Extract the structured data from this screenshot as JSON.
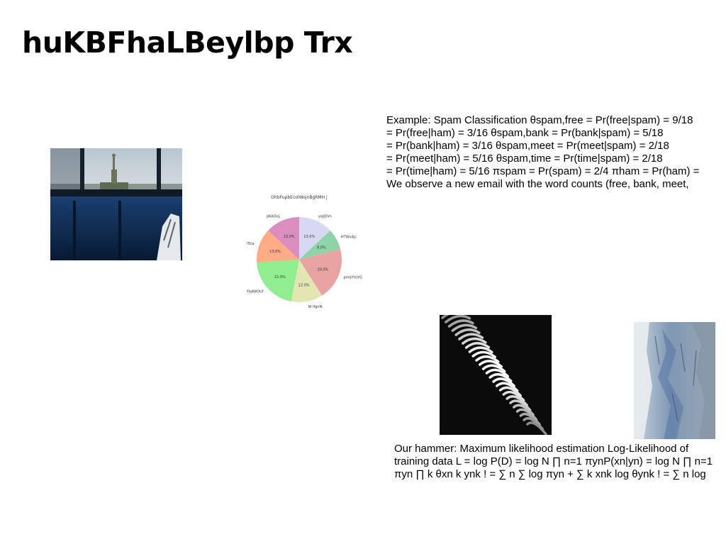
{
  "page": {
    "title": "huKBFhaLBeylbp Trx"
  },
  "spam_example": {
    "lines": [
      "Example: Spam Classification θspam,free = Pr(free|spam) = 9/18",
      "= Pr(free|ham) = 3/16 θspam,bank = Pr(bank|spam) = 5/18",
      "= Pr(bank|ham) = 3/16 θspam,meet = Pr(meet|spam) = 2/18",
      "= Pr(meet|ham) = 5/16 θspam,time = Pr(time|spam) = 2/18",
      "= Pr(time|ham) = 5/16 πspam = Pr(spam) = 2/4 πham = Pr(ham) =",
      "We observe a new email with the word counts (free, bank, meet,"
    ]
  },
  "hammer": {
    "lines": [
      "Our hammer: Maximum likelihood estimation Log-Likelihood of",
      "training data L = log P(D) = log N ∏ n=1 πynP(xn|yn) = log N ∏ n=1",
      "πyn ∏ k θxn k ynk ! = ∑ n ∑ log πyn + ∑ k xnk log θynk ! = ∑ n log"
    ]
  },
  "images": {
    "window": "statue-of-liberty-through-ferry-window",
    "ribbons": "abstract-black-white-wave",
    "cliff": "blue-grey-rock-cliff"
  },
  "chart_data": {
    "type": "pie",
    "title": "OhbFupbEcolWojnBgRMH j",
    "categories": [
      "yqiJDVn",
      "HTWvAjc",
      "pmbYVzrG",
      "W lfgnN",
      "FbAWOUf",
      "!Tcla",
      "pKAOoL"
    ],
    "values": [
      13.0,
      8.0,
      20.0,
      12.0,
      21.0,
      13.0,
      13.0
    ],
    "value_labels": [
      "13.0%",
      "8.0%",
      "20.0%",
      "12.0%",
      "21.0%",
      "13.0%",
      "13.0%"
    ],
    "colors": [
      "#d7d9f3",
      "#8fd3a8",
      "#e8a3a3",
      "#e3e6b2",
      "#90ee90",
      "#ffab85",
      "#d98ebd"
    ],
    "start": "top",
    "direction": "clockwise"
  }
}
